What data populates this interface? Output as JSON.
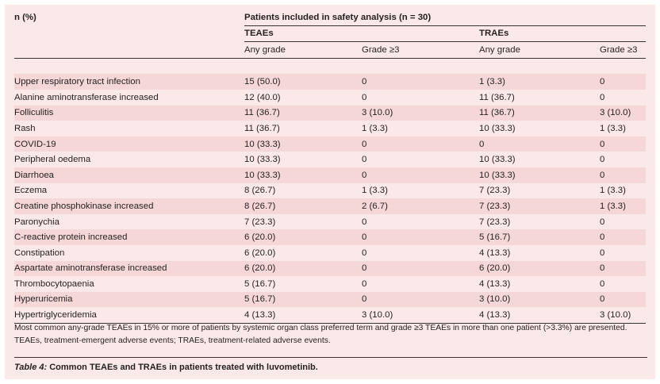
{
  "header": {
    "n_pct": "n (%)",
    "group_title": "Patients included in safety analysis (n = 30)",
    "teaes": "TEAEs",
    "traes": "TRAEs",
    "any_grade": "Any grade",
    "grade3": "Grade ≥3"
  },
  "rows": [
    {
      "term": "Upper respiratory tract infection",
      "teae_any": "15 (50.0)",
      "teae_g3": "0",
      "trae_any": "1 (3.3)",
      "trae_g3": "0"
    },
    {
      "term": "Alanine aminotransferase increased",
      "teae_any": "12 (40.0)",
      "teae_g3": "0",
      "trae_any": "11 (36.7)",
      "trae_g3": "0"
    },
    {
      "term": "Folliculitis",
      "teae_any": "11 (36.7)",
      "teae_g3": "3 (10.0)",
      "trae_any": "11 (36.7)",
      "trae_g3": "3 (10.0)"
    },
    {
      "term": "Rash",
      "teae_any": "11 (36.7)",
      "teae_g3": "1 (3.3)",
      "trae_any": "10 (33.3)",
      "trae_g3": "1 (3.3)"
    },
    {
      "term": "COVID-19",
      "teae_any": "10 (33.3)",
      "teae_g3": "0",
      "trae_any": "0",
      "trae_g3": "0"
    },
    {
      "term": "Peripheral oedema",
      "teae_any": "10 (33.3)",
      "teae_g3": "0",
      "trae_any": "10 (33.3)",
      "trae_g3": "0"
    },
    {
      "term": "Diarrhoea",
      "teae_any": "10 (33.3)",
      "teae_g3": "0",
      "trae_any": "10 (33.3)",
      "trae_g3": "0"
    },
    {
      "term": "Eczema",
      "teae_any": "8 (26.7)",
      "teae_g3": "1 (3.3)",
      "trae_any": "7 (23.3)",
      "trae_g3": "1 (3.3)"
    },
    {
      "term": "Creatine phosphokinase increased",
      "teae_any": "8 (26.7)",
      "teae_g3": "2 (6.7)",
      "trae_any": "7 (23.3)",
      "trae_g3": "1 (3.3)"
    },
    {
      "term": "Paronychia",
      "teae_any": "7 (23.3)",
      "teae_g3": "0",
      "trae_any": "7 (23.3)",
      "trae_g3": "0"
    },
    {
      "term": "C-reactive protein increased",
      "teae_any": "6 (20.0)",
      "teae_g3": "0",
      "trae_any": "5 (16.7)",
      "trae_g3": "0"
    },
    {
      "term": "Constipation",
      "teae_any": "6 (20.0)",
      "teae_g3": "0",
      "trae_any": "4 (13.3)",
      "trae_g3": "0"
    },
    {
      "term": "Aspartate aminotransferase increased",
      "teae_any": "6 (20.0)",
      "teae_g3": "0",
      "trae_any": "6 (20.0)",
      "trae_g3": "0"
    },
    {
      "term": "Thrombocytopaenia",
      "teae_any": "5 (16.7)",
      "teae_g3": "0",
      "trae_any": "4 (13.3)",
      "trae_g3": "0"
    },
    {
      "term": "Hyperuricemia",
      "teae_any": "5 (16.7)",
      "teae_g3": "0",
      "trae_any": "3 (10.0)",
      "trae_g3": "0"
    },
    {
      "term": "Hypertriglyceridemia",
      "teae_any": "4 (13.3)",
      "teae_g3": "3 (10.0)",
      "trae_any": "4 (13.3)",
      "trae_g3": "3 (10.0)"
    }
  ],
  "notes": {
    "line1": "Most common any-grade TEAEs in 15% or more of patients by systemic organ class preferred term and grade ≥3 TEAEs in more than one patient (>3.3%) are presented.",
    "line2": "TEAEs, treatment-emergent adverse events; TRAEs, treatment-related adverse events."
  },
  "caption": {
    "label": "Table 4:",
    "text": " Common TEAEs and TRAEs in patients treated with luvometinib."
  },
  "colors": {
    "panel_bg": "#fbe9e9",
    "row_alt": "#f6d7d7",
    "rule": "#3a3335"
  }
}
